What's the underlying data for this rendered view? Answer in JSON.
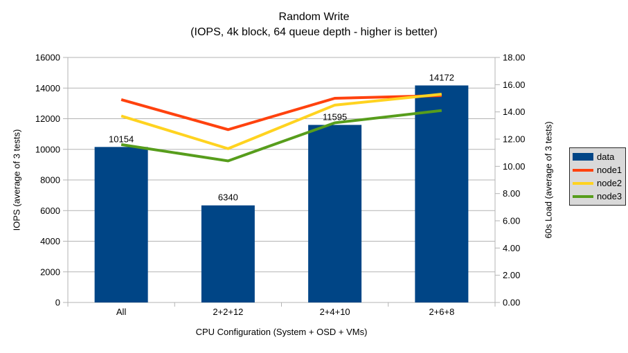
{
  "chart_data": {
    "type": "combo-bar-line",
    "title": "Random Write",
    "subtitle": "(IOPS, 4k block, 64 queue depth - higher is better)",
    "xlabel": "CPU Configuration (System + OSD + VMs)",
    "categories": [
      "All",
      "2+2+12",
      "2+4+10",
      "2+6+8"
    ],
    "left_axis": {
      "label": "IOPS (average of 3 tests)",
      "min": 0,
      "max": 16000,
      "step": 2000,
      "tick_labels": [
        "0",
        "2000",
        "4000",
        "6000",
        "8000",
        "10000",
        "12000",
        "14000",
        "16000"
      ]
    },
    "right_axis": {
      "label": "60s Load (average of 3 tests)",
      "min": 0,
      "max": 18,
      "step": 2,
      "tick_labels": [
        "0.00",
        "2.00",
        "4.00",
        "6.00",
        "8.00",
        "10.00",
        "12.00",
        "14.00",
        "16.00",
        "18.00"
      ]
    },
    "bar_series": {
      "name": "data",
      "color": "#004586",
      "axis": "left",
      "values": [
        10154,
        6340,
        11595,
        14172
      ],
      "value_labels": [
        "10154",
        "6340",
        "11595",
        "14172"
      ]
    },
    "line_series": [
      {
        "name": "node1",
        "color": "#ff420e",
        "axis": "right",
        "values": [
          14.9,
          12.7,
          15.0,
          15.2
        ]
      },
      {
        "name": "node2",
        "color": "#ffd320",
        "axis": "right",
        "values": [
          13.7,
          11.3,
          14.5,
          15.3
        ]
      },
      {
        "name": "node3",
        "color": "#579d1c",
        "axis": "right",
        "values": [
          11.6,
          10.4,
          13.2,
          14.1
        ]
      }
    ],
    "legend": {
      "position": "right",
      "items": [
        {
          "label": "data",
          "color": "#004586",
          "swatch": "box"
        },
        {
          "label": "node1",
          "color": "#ff420e",
          "swatch": "line"
        },
        {
          "label": "node2",
          "color": "#ffd320",
          "swatch": "line"
        },
        {
          "label": "node3",
          "color": "#579d1c",
          "swatch": "line"
        }
      ]
    },
    "grid": {
      "show": true,
      "color": "#b3b3b3"
    },
    "background": "#ffffff",
    "legend_background": "#d9d9d9"
  }
}
